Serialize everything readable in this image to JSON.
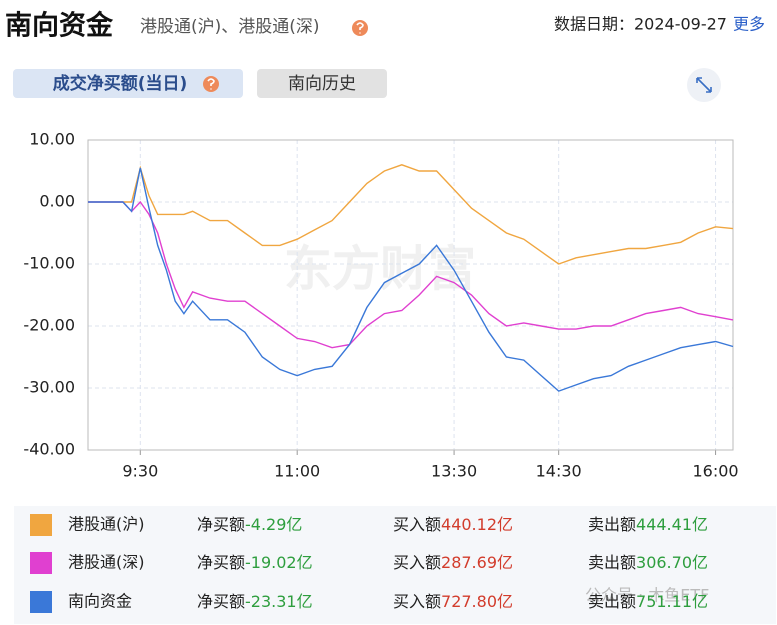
{
  "header": {
    "title": "南向资金",
    "subtitle": "港股通(沪)、港股通(深)",
    "date": "数据日期：2024-09-27",
    "more": "更多"
  },
  "tabs": [
    "成交净买额(当日)",
    "南向历史"
  ],
  "watermarks": [
    "东方财富",
    "公众号 · 木鱼ETF"
  ],
  "chart_data": {
    "type": "line",
    "x": [
      0,
      20,
      25,
      30,
      35,
      40,
      45,
      50,
      55,
      60,
      70,
      80,
      90,
      100,
      110,
      120,
      130,
      140,
      150,
      160,
      170,
      180,
      190,
      200,
      210,
      220,
      230,
      240,
      250,
      260,
      270,
      280,
      290,
      300,
      310,
      320,
      330,
      340,
      350,
      360,
      370
    ],
    "xlim": [
      0,
      370
    ],
    "xticks": [
      {
        "value": 30,
        "label": "9:30"
      },
      {
        "value": 120,
        "label": "11:00"
      },
      {
        "value": 210,
        "label": "13:30"
      },
      {
        "value": 270,
        "label": "14:30"
      },
      {
        "value": 360,
        "label": "16:00"
      }
    ],
    "ylim": [
      -40,
      10
    ],
    "yticks": [
      {
        "value": 10,
        "label": "10.00"
      },
      {
        "value": 0,
        "label": "0.00"
      },
      {
        "value": -10,
        "label": "-10.00"
      },
      {
        "value": -20,
        "label": "-20.00"
      },
      {
        "value": -30,
        "label": "-30.00"
      },
      {
        "value": -40,
        "label": "-40.00"
      }
    ],
    "grid": true,
    "series": [
      {
        "name": "港股通(沪)",
        "color": "#f0a640",
        "values": [
          0,
          0,
          0,
          5.5,
          1,
          -2,
          -2,
          -2,
          -2,
          -1.5,
          -3,
          -3,
          -5,
          -7,
          -7,
          -6,
          -4.5,
          -3,
          0,
          3,
          5,
          6,
          5,
          5,
          2,
          -1,
          -3,
          -5,
          -6,
          -8,
          -10,
          -9,
          -8.5,
          -8,
          -7.5,
          -7.5,
          -7,
          -6.5,
          -5,
          -4,
          -4.29
        ]
      },
      {
        "name": "港股通(深)",
        "color": "#e040d0",
        "values": [
          0,
          0,
          -1.5,
          0,
          -2,
          -5,
          -10,
          -14,
          -17,
          -14.5,
          -15.5,
          -16,
          -16,
          -18,
          -20,
          -22,
          -22.5,
          -23.5,
          -23,
          -20,
          -18,
          -17.5,
          -15,
          -12,
          -13,
          -15,
          -18,
          -20,
          -19.5,
          -20,
          -20.5,
          -20.5,
          -20,
          -20,
          -19,
          -18,
          -17.5,
          -17,
          -18,
          -18.5,
          -19.02
        ]
      },
      {
        "name": "南向资金",
        "color": "#3a78d8",
        "values": [
          0,
          0,
          -1.5,
          5.5,
          -1,
          -7,
          -11,
          -16,
          -18,
          -16,
          -19,
          -19,
          -21,
          -25,
          -27,
          -28,
          -27,
          -26.5,
          -23,
          -17,
          -13,
          -11.5,
          -10,
          -7,
          -11,
          -16,
          -21,
          -25,
          -25.5,
          -28,
          -30.5,
          -29.5,
          -28.5,
          -28,
          -26.5,
          -25.5,
          -24.5,
          -23.5,
          -23,
          -22.5,
          -23.31
        ]
      }
    ]
  },
  "summary": {
    "labels": [
      "净买额",
      "买入额",
      "卖出额"
    ],
    "rows": [
      [
        "-4.29亿",
        "440.12亿",
        "444.41亿"
      ],
      [
        "-19.02亿",
        "287.69亿",
        "306.70亿"
      ],
      [
        "-23.31亿",
        "727.80亿",
        "751.11亿"
      ]
    ]
  }
}
